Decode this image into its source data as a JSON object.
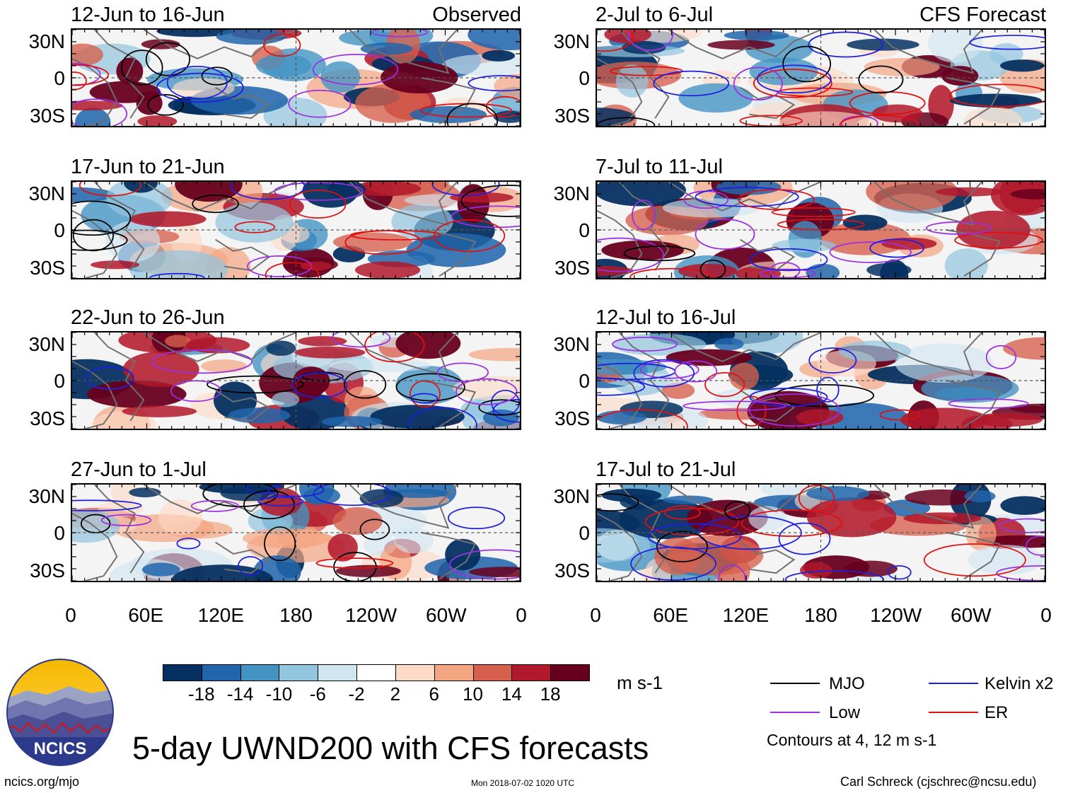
{
  "chart_data": {
    "type": "heatmap",
    "title": "5-day UWND200 with CFS forecasts",
    "columns": [
      {
        "header": "Observed",
        "panels": [
          "12-Jun to 16-Jun",
          "17-Jun to 21-Jun",
          "22-Jun to 26-Jun",
          "27-Jun to 1-Jul"
        ]
      },
      {
        "header": "CFS Forecast",
        "panels": [
          "2-Jul to 6-Jul",
          "7-Jul to 11-Jul",
          "12-Jul to 16-Jul",
          "17-Jul to 21-Jul"
        ]
      }
    ],
    "y_ticks": [
      "30N",
      "0",
      "30S"
    ],
    "ylim": [
      -40,
      40
    ],
    "x_ticks": [
      "0",
      "60E",
      "120E",
      "180",
      "120W",
      "60W",
      "0"
    ],
    "xlim": [
      0,
      360
    ],
    "colorbar": {
      "levels": [
        "-18",
        "-14",
        "-10",
        "-6",
        "-2",
        "2",
        "6",
        "10",
        "14",
        "18"
      ],
      "colors": [
        "#053061",
        "#2166ac",
        "#4393c3",
        "#92c5de",
        "#d1e5f0",
        "#ffffff",
        "#fddbc7",
        "#f4a582",
        "#d6604d",
        "#b2182b",
        "#67001f"
      ],
      "units": "m s-1"
    },
    "contour_legend": [
      {
        "label": "MJO",
        "color": "#000000"
      },
      {
        "label": "Kelvin x2",
        "color": "#1f1fe0"
      },
      {
        "label": "Low",
        "color": "#9b30e0"
      },
      {
        "label": "ER",
        "color": "#e01010"
      }
    ],
    "contour_note": "Contours at 4, 12 m s-1"
  },
  "logo": {
    "text": "NCICS"
  },
  "footer": {
    "url": "ncics.org/mjo",
    "timestamp": "Mon 2018-07-02 1020 UTC",
    "credit": "Carl Schreck (cjschrec@ncsu.edu)"
  }
}
